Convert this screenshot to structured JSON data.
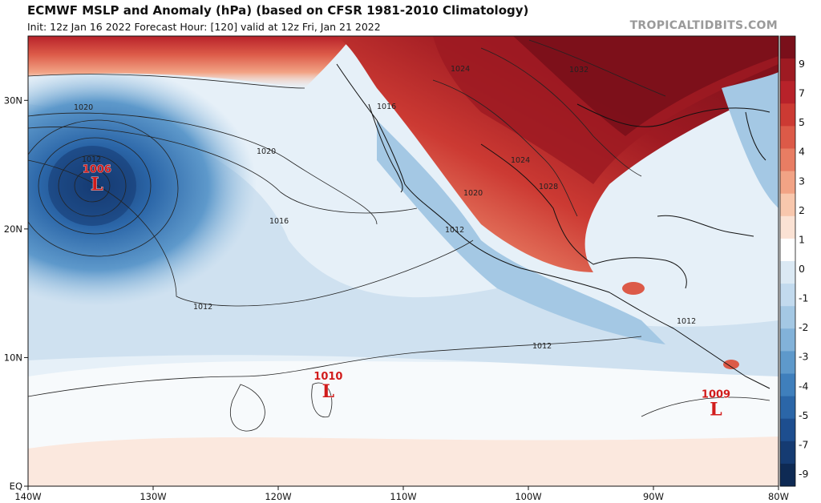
{
  "header": {
    "title": "ECMWF MSLP and Anomaly (hPa) (based on CFSR 1981-2010 Climatology)",
    "subtitle": "Init: 12z Jan 16 2022   Forecast Hour: [120]   valid at 12z Fri, Jan 21 2022",
    "brand": "TROPICALTIDBITS.COM"
  },
  "axes": {
    "lon_ticks": [
      "140W",
      "130W",
      "120W",
      "110W",
      "100W",
      "90W",
      "80W"
    ],
    "lat_ticks": [
      "30N",
      "20N",
      "10N",
      "EQ"
    ],
    "lon_range": [
      -140,
      -80
    ],
    "lat_range": [
      0,
      35
    ]
  },
  "colorbar": {
    "labels": [
      "9",
      "7",
      "5",
      "4",
      "3",
      "2",
      "1",
      "0",
      "-1",
      "-2",
      "-3",
      "-4",
      "-5",
      "-7",
      "-9"
    ],
    "colors": [
      "#7a0f1a",
      "#9e1a22",
      "#b8222a",
      "#cc3a33",
      "#dc5a48",
      "#e87d63",
      "#f2a385",
      "#f8c7ad",
      "#fbe2d4",
      "#ffffff",
      "#dbe9f4",
      "#c2daee",
      "#a4c8e4",
      "#82b2d9",
      "#5e99cb",
      "#3f7fbc",
      "#2b66a8",
      "#1d4e8f",
      "#153b72",
      "#0e2a54"
    ]
  },
  "lows": [
    {
      "value": "1006",
      "letter": "L",
      "lon": -134.5,
      "lat": 23.5
    },
    {
      "value": "1010",
      "letter": "L",
      "lon": -116,
      "lat": 7.4
    },
    {
      "value": "1009",
      "letter": "L",
      "lon": -85,
      "lat": 6
    }
  ],
  "isobar_labels": [
    "1020",
    "1020",
    "1016",
    "1016",
    "1012",
    "1012",
    "1012",
    "1012",
    "1012",
    "1024",
    "1032",
    "1024",
    "1028",
    "1020",
    "1016"
  ]
}
